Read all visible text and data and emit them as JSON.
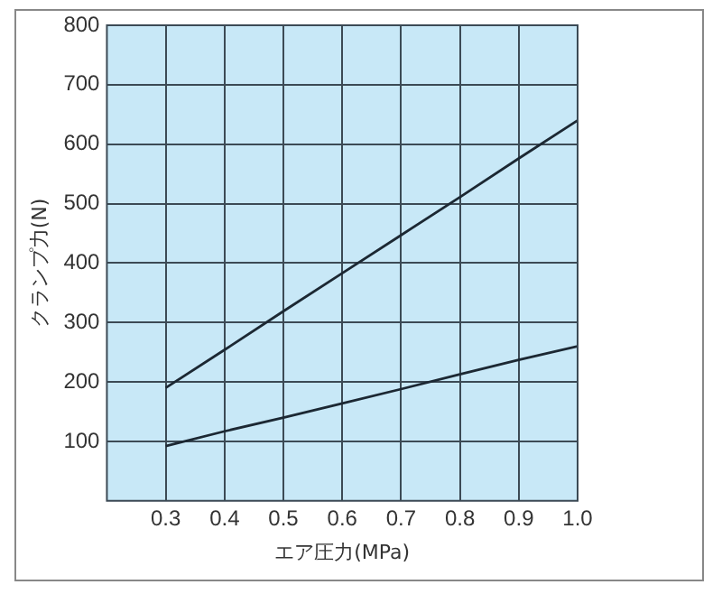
{
  "chart_data": {
    "type": "line",
    "xlabel": "エア圧力(MPa)",
    "ylabel": "クランプ力(N)",
    "x": [
      0.3,
      0.4,
      0.5,
      0.6,
      0.7,
      0.8,
      0.9,
      1.0
    ],
    "series": [
      {
        "color": "#1c2833",
        "values": [
          190,
          254,
          319,
          383,
          447,
          511,
          576,
          640
        ]
      },
      {
        "color": "#1c2833",
        "values": [
          92,
          117,
          140,
          164,
          188,
          213,
          237,
          260
        ]
      }
    ],
    "xlim": [
      0.2,
      1.0
    ],
    "xticks": [
      0.3,
      0.4,
      0.5,
      0.6,
      0.7,
      0.8,
      0.9,
      {
        "value": 1.0,
        "label": "1.0"
      }
    ],
    "ylim": [
      0,
      800
    ],
    "yticks": [
      100,
      200,
      300,
      400,
      500,
      600,
      700,
      800
    ],
    "grid": true,
    "legend": false,
    "marker": "none",
    "line_style": "solid"
  }
}
